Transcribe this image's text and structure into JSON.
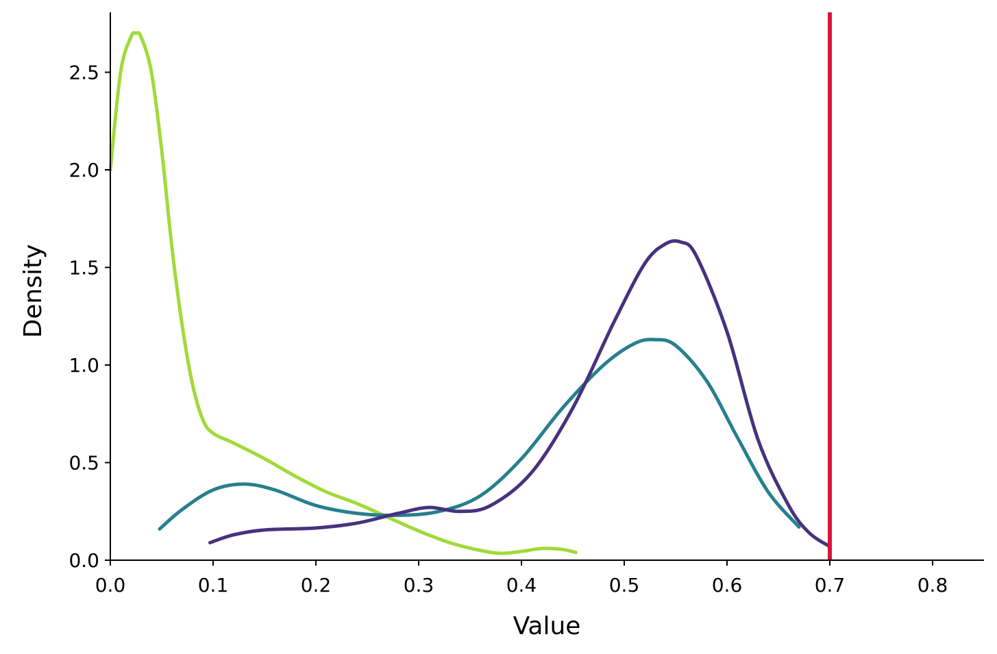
{
  "chart_data": {
    "type": "line",
    "title": "",
    "xlabel": "Value",
    "ylabel": "Density",
    "xlim": [
      0.0,
      0.85
    ],
    "ylim": [
      0.0,
      2.8
    ],
    "xticks": [
      0.0,
      0.1,
      0.2,
      0.3,
      0.4,
      0.5,
      0.6,
      0.7,
      0.8
    ],
    "xtick_labels": [
      "0.0",
      "0.1",
      "0.2",
      "0.3",
      "0.4",
      "0.5",
      "0.6",
      "0.7",
      "0.8"
    ],
    "yticks": [
      0.0,
      0.5,
      1.0,
      1.5,
      2.0,
      2.5
    ],
    "ytick_labels": [
      "0.0",
      "0.5",
      "1.0",
      "1.5",
      "2.0",
      "2.5"
    ],
    "grid": false,
    "legend": "none",
    "series": [
      {
        "color": "#a0da39",
        "x": [
          0.0,
          0.01,
          0.02,
          0.025,
          0.03,
          0.04,
          0.05,
          0.06,
          0.07,
          0.08,
          0.09,
          0.1,
          0.12,
          0.15,
          0.18,
          0.21,
          0.24,
          0.27,
          0.3,
          0.33,
          0.36,
          0.38,
          0.4,
          0.42,
          0.44,
          0.453
        ],
        "y": [
          2.0,
          2.5,
          2.68,
          2.7,
          2.68,
          2.5,
          2.1,
          1.6,
          1.2,
          0.9,
          0.72,
          0.65,
          0.6,
          0.52,
          0.43,
          0.35,
          0.29,
          0.22,
          0.15,
          0.09,
          0.05,
          0.035,
          0.045,
          0.06,
          0.055,
          0.04
        ]
      },
      {
        "color": "#277f8e",
        "x": [
          0.048,
          0.07,
          0.1,
          0.13,
          0.16,
          0.2,
          0.24,
          0.28,
          0.32,
          0.36,
          0.4,
          0.44,
          0.48,
          0.51,
          0.53,
          0.55,
          0.58,
          0.61,
          0.64,
          0.67
        ],
        "y": [
          0.16,
          0.26,
          0.36,
          0.39,
          0.36,
          0.28,
          0.24,
          0.23,
          0.25,
          0.33,
          0.52,
          0.78,
          1.0,
          1.11,
          1.13,
          1.1,
          0.92,
          0.63,
          0.35,
          0.17
        ]
      },
      {
        "color": "#46327e",
        "x": [
          0.097,
          0.12,
          0.15,
          0.2,
          0.24,
          0.28,
          0.31,
          0.34,
          0.37,
          0.41,
          0.45,
          0.49,
          0.52,
          0.54,
          0.555,
          0.57,
          0.6,
          0.63,
          0.66,
          0.68,
          0.7
        ],
        "y": [
          0.09,
          0.13,
          0.155,
          0.165,
          0.19,
          0.24,
          0.27,
          0.25,
          0.28,
          0.45,
          0.78,
          1.22,
          1.52,
          1.62,
          1.63,
          1.56,
          1.17,
          0.62,
          0.28,
          0.14,
          0.07
        ]
      }
    ],
    "vline": {
      "x": 0.7,
      "color": "#dc143c"
    }
  }
}
